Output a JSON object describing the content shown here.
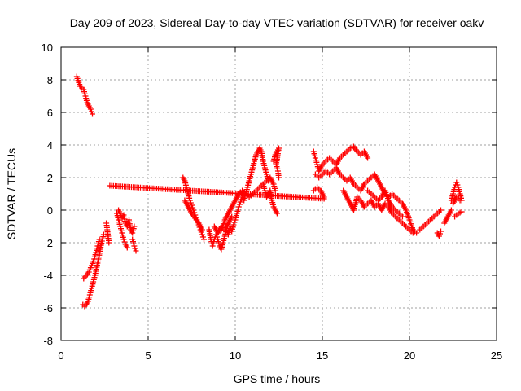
{
  "chart_data": {
    "type": "scatter",
    "title": "Day 209 of 2023, Sidereal Day-to-day VTEC variation (SDTVAR) for receiver oakv",
    "xlabel": "GPS time / hours",
    "ylabel": "SDTVAR / TECUs",
    "xlim": [
      0,
      25
    ],
    "ylim": [
      -8,
      10
    ],
    "xticks": [
      0,
      5,
      10,
      15,
      20,
      25
    ],
    "yticks": [
      -8,
      -6,
      -4,
      -2,
      0,
      2,
      4,
      6,
      8,
      10
    ],
    "grid": true,
    "marker": "+",
    "color": "#ff0000",
    "series": [
      {
        "name": "SDTVAR",
        "segments": [
          [
            [
              0.9,
              8.2
            ],
            [
              1.1,
              7.6
            ],
            [
              1.3,
              7.4
            ],
            [
              1.4,
              7.0
            ],
            [
              1.5,
              6.6
            ],
            [
              1.6,
              6.4
            ],
            [
              1.7,
              6.2
            ],
            [
              1.8,
              5.9
            ]
          ],
          [
            [
              1.25,
              -5.8
            ],
            [
              1.35,
              -5.9
            ],
            [
              1.45,
              -5.8
            ],
            [
              1.55,
              -5.6
            ],
            [
              1.65,
              -5.2
            ],
            [
              1.75,
              -4.8
            ],
            [
              1.85,
              -4.4
            ],
            [
              1.95,
              -4.0
            ],
            [
              2.05,
              -3.5
            ],
            [
              2.15,
              -3.0
            ],
            [
              2.25,
              -2.4
            ],
            [
              2.35,
              -1.9
            ],
            [
              2.45,
              -1.5
            ]
          ],
          [
            [
              1.3,
              -4.2
            ],
            [
              1.45,
              -4.0
            ],
            [
              1.6,
              -3.8
            ],
            [
              1.75,
              -3.4
            ],
            [
              1.9,
              -3.0
            ],
            [
              2.0,
              -2.6
            ],
            [
              2.1,
              -2.2
            ],
            [
              2.2,
              -1.8
            ]
          ],
          [
            [
              2.6,
              -0.8
            ],
            [
              2.65,
              -1.2
            ],
            [
              2.7,
              -1.6
            ],
            [
              2.75,
              -2.0
            ]
          ],
          [
            [
              3.2,
              -0.2
            ],
            [
              3.3,
              -0.6
            ],
            [
              3.4,
              -1.0
            ],
            [
              3.5,
              -1.4
            ],
            [
              3.6,
              -1.8
            ],
            [
              3.7,
              -2.1
            ],
            [
              3.8,
              -2.3
            ]
          ],
          [
            [
              3.3,
              0.0
            ],
            [
              3.4,
              -0.2
            ],
            [
              3.5,
              -0.5
            ],
            [
              3.6,
              -0.3
            ],
            [
              3.7,
              -0.8
            ],
            [
              3.8,
              -1.0
            ],
            [
              3.9,
              -0.6
            ],
            [
              4.0,
              -1.2
            ],
            [
              4.1,
              -1.4
            ],
            [
              4.2,
              -1.0
            ]
          ],
          [
            [
              4.1,
              -1.8
            ],
            [
              4.2,
              -2.2
            ],
            [
              4.3,
              -2.5
            ]
          ],
          [
            [
              7.0,
              2.0
            ],
            [
              7.1,
              1.8
            ],
            [
              7.2,
              1.4
            ],
            [
              7.3,
              1.0
            ],
            [
              7.4,
              0.6
            ],
            [
              7.5,
              0.3
            ],
            [
              7.6,
              0.0
            ],
            [
              7.7,
              -0.3
            ],
            [
              7.8,
              -0.6
            ],
            [
              7.9,
              -0.9
            ],
            [
              8.0,
              -1.2
            ],
            [
              8.1,
              -1.5
            ],
            [
              8.2,
              -1.8
            ]
          ],
          [
            [
              7.1,
              0.6
            ],
            [
              7.3,
              0.2
            ],
            [
              7.5,
              -0.2
            ],
            [
              7.7,
              -0.5
            ],
            [
              7.9,
              -0.8
            ],
            [
              8.1,
              -1.2
            ]
          ],
          [
            [
              8.5,
              -1.2
            ],
            [
              8.6,
              -1.8
            ],
            [
              8.7,
              -2.2
            ],
            [
              8.8,
              -1.8
            ],
            [
              8.9,
              -1.5
            ],
            [
              9.0,
              -1.8
            ],
            [
              9.1,
              -2.2
            ],
            [
              9.2,
              -2.4
            ],
            [
              9.3,
              -2.0
            ],
            [
              9.4,
              -1.6
            ],
            [
              9.5,
              -1.2
            ],
            [
              9.6,
              -1.5
            ],
            [
              9.7,
              -1.0
            ],
            [
              9.8,
              -1.3
            ],
            [
              9.9,
              -0.9
            ],
            [
              10.0,
              -0.6
            ],
            [
              10.1,
              -0.2
            ],
            [
              10.2,
              0.2
            ],
            [
              10.3,
              0.5
            ],
            [
              10.4,
              0.8
            ],
            [
              10.5,
              0.6
            ],
            [
              10.6,
              1.0
            ],
            [
              10.7,
              1.4
            ],
            [
              10.8,
              1.8
            ],
            [
              10.9,
              2.2
            ],
            [
              11.0,
              2.6
            ],
            [
              11.1,
              3.0
            ],
            [
              11.2,
              3.4
            ],
            [
              11.3,
              3.6
            ],
            [
              11.4,
              3.8
            ],
            [
              11.5,
              3.6
            ],
            [
              11.6,
              3.0
            ],
            [
              11.7,
              2.6
            ],
            [
              11.8,
              2.2
            ],
            [
              11.9,
              1.8
            ]
          ],
          [
            [
              9.2,
              -1.2
            ],
            [
              9.4,
              -0.6
            ],
            [
              9.6,
              -0.2
            ],
            [
              9.8,
              0.2
            ],
            [
              10.0,
              0.6
            ],
            [
              10.2,
              1.0
            ],
            [
              10.4,
              1.2
            ],
            [
              10.6,
              1.0
            ],
            [
              10.8,
              0.8
            ],
            [
              11.0,
              1.0
            ],
            [
              11.2,
              1.2
            ],
            [
              11.4,
              1.4
            ],
            [
              11.6,
              1.6
            ],
            [
              11.8,
              1.8
            ],
            [
              12.0,
              2.0
            ],
            [
              12.2,
              1.6
            ],
            [
              12.3,
              1.2
            ]
          ],
          [
            [
              8.8,
              -1.0
            ],
            [
              9.0,
              -1.4
            ],
            [
              9.2,
              -1.0
            ],
            [
              9.4,
              -1.2
            ],
            [
              9.6,
              -0.8
            ],
            [
              9.8,
              -0.4
            ]
          ],
          [
            [
              11.6,
              1.6
            ],
            [
              11.7,
              1.2
            ],
            [
              11.8,
              0.8
            ],
            [
              11.9,
              1.0
            ],
            [
              12.0,
              1.2
            ],
            [
              12.1,
              0.6
            ],
            [
              12.2,
              0.2
            ],
            [
              12.3,
              0.0
            ],
            [
              12.4,
              -0.2
            ]
          ],
          [
            [
              12.2,
              3.0
            ],
            [
              12.3,
              3.4
            ],
            [
              12.4,
              3.6
            ],
            [
              12.5,
              3.8
            ],
            [
              12.35,
              2.8
            ],
            [
              12.45,
              2.4
            ],
            [
              12.5,
              2.0
            ]
          ],
          [
            [
              14.5,
              3.6
            ],
            [
              14.6,
              3.2
            ],
            [
              14.7,
              2.8
            ],
            [
              14.8,
              2.4
            ],
            [
              14.9,
              2.6
            ],
            [
              15.0,
              2.8
            ],
            [
              15.2,
              3.0
            ],
            [
              15.4,
              3.2
            ],
            [
              15.6,
              3.0
            ],
            [
              15.8,
              2.8
            ],
            [
              16.0,
              3.2
            ],
            [
              16.2,
              3.4
            ],
            [
              16.4,
              3.6
            ],
            [
              16.6,
              3.8
            ],
            [
              16.8,
              3.9
            ],
            [
              17.0,
              3.6
            ],
            [
              17.2,
              3.4
            ],
            [
              17.4,
              3.6
            ],
            [
              17.6,
              3.2
            ]
          ],
          [
            [
              14.6,
              2.2
            ],
            [
              14.8,
              2.0
            ],
            [
              15.0,
              2.2
            ],
            [
              15.2,
              2.4
            ],
            [
              15.4,
              2.2
            ],
            [
              15.6,
              2.4
            ],
            [
              15.8,
              2.6
            ],
            [
              16.0,
              2.2
            ],
            [
              16.2,
              2.0
            ],
            [
              16.4,
              1.8
            ],
            [
              16.6,
              2.0
            ],
            [
              16.8,
              1.6
            ],
            [
              17.0,
              1.4
            ],
            [
              17.2,
              1.2
            ],
            [
              17.4,
              1.6
            ],
            [
              17.6,
              1.8
            ],
            [
              17.8,
              2.0
            ],
            [
              18.0,
              2.2
            ],
            [
              18.2,
              1.8
            ],
            [
              18.4,
              1.4
            ],
            [
              18.6,
              1.0
            ],
            [
              18.8,
              0.8
            ],
            [
              19.0,
              1.0
            ],
            [
              19.2,
              0.8
            ],
            [
              19.4,
              0.6
            ],
            [
              19.6,
              0.4
            ],
            [
              19.8,
              0.0
            ],
            [
              20.0,
              -0.6
            ],
            [
              20.2,
              -1.2
            ],
            [
              20.4,
              -1.4
            ]
          ],
          [
            [
              14.5,
              1.2
            ],
            [
              14.7,
              1.4
            ],
            [
              14.9,
              1.2
            ],
            [
              15.1,
              0.8
            ]
          ],
          [
            [
              16.2,
              1.2
            ],
            [
              16.4,
              0.8
            ],
            [
              16.6,
              0.4
            ],
            [
              16.8,
              0.0
            ],
            [
              17.0,
              0.8
            ],
            [
              17.2,
              0.6
            ],
            [
              17.4,
              0.2
            ],
            [
              17.6,
              0.4
            ],
            [
              17.8,
              0.6
            ],
            [
              18.0,
              0.2
            ],
            [
              18.2,
              0.4
            ],
            [
              18.4,
              0.0
            ],
            [
              18.6,
              0.4
            ],
            [
              18.8,
              0.2
            ],
            [
              19.0,
              -0.2
            ],
            [
              19.2,
              -0.4
            ],
            [
              19.4,
              -0.6
            ],
            [
              19.6,
              -0.8
            ],
            [
              19.8,
              -1.0
            ],
            [
              20.0,
              -1.2
            ],
            [
              20.2,
              -1.4
            ]
          ],
          [
            [
              17.6,
              1.2
            ],
            [
              17.8,
              1.0
            ],
            [
              18.0,
              0.8
            ],
            [
              18.2,
              0.6
            ],
            [
              18.4,
              0.8
            ],
            [
              18.6,
              1.2
            ],
            [
              18.8,
              0.6
            ],
            [
              19.0,
              0.2
            ],
            [
              19.2,
              0.0
            ],
            [
              19.4,
              -0.2
            ],
            [
              19.6,
              -0.4
            ]
          ],
          [
            [
              20.6,
              -1.2
            ],
            [
              20.8,
              -1.0
            ],
            [
              21.0,
              -0.8
            ],
            [
              21.2,
              -0.6
            ],
            [
              21.4,
              -0.4
            ],
            [
              21.6,
              -0.2
            ],
            [
              21.8,
              0.0
            ]
          ],
          [
            [
              21.6,
              -1.4
            ],
            [
              21.7,
              -1.6
            ],
            [
              21.8,
              -1.3
            ]
          ],
          [
            [
              22.0,
              -0.8
            ],
            [
              22.1,
              -0.6
            ],
            [
              22.2,
              -0.4
            ],
            [
              22.3,
              -0.2
            ],
            [
              22.4,
              0.0
            ]
          ],
          [
            [
              22.4,
              0.6
            ],
            [
              22.5,
              1.0
            ],
            [
              22.6,
              1.4
            ],
            [
              22.7,
              1.7
            ],
            [
              22.8,
              1.4
            ],
            [
              22.9,
              1.0
            ],
            [
              23.0,
              0.6
            ]
          ],
          [
            [
              22.5,
              0.4
            ],
            [
              22.7,
              0.8
            ],
            [
              22.9,
              0.6
            ]
          ],
          [
            [
              22.6,
              -0.4
            ],
            [
              22.8,
              -0.2
            ],
            [
              23.0,
              -0.1
            ]
          ],
          [
            [
              2.8,
              1.5
            ],
            [
              15.1,
              0.7
            ]
          ]
        ]
      }
    ]
  }
}
